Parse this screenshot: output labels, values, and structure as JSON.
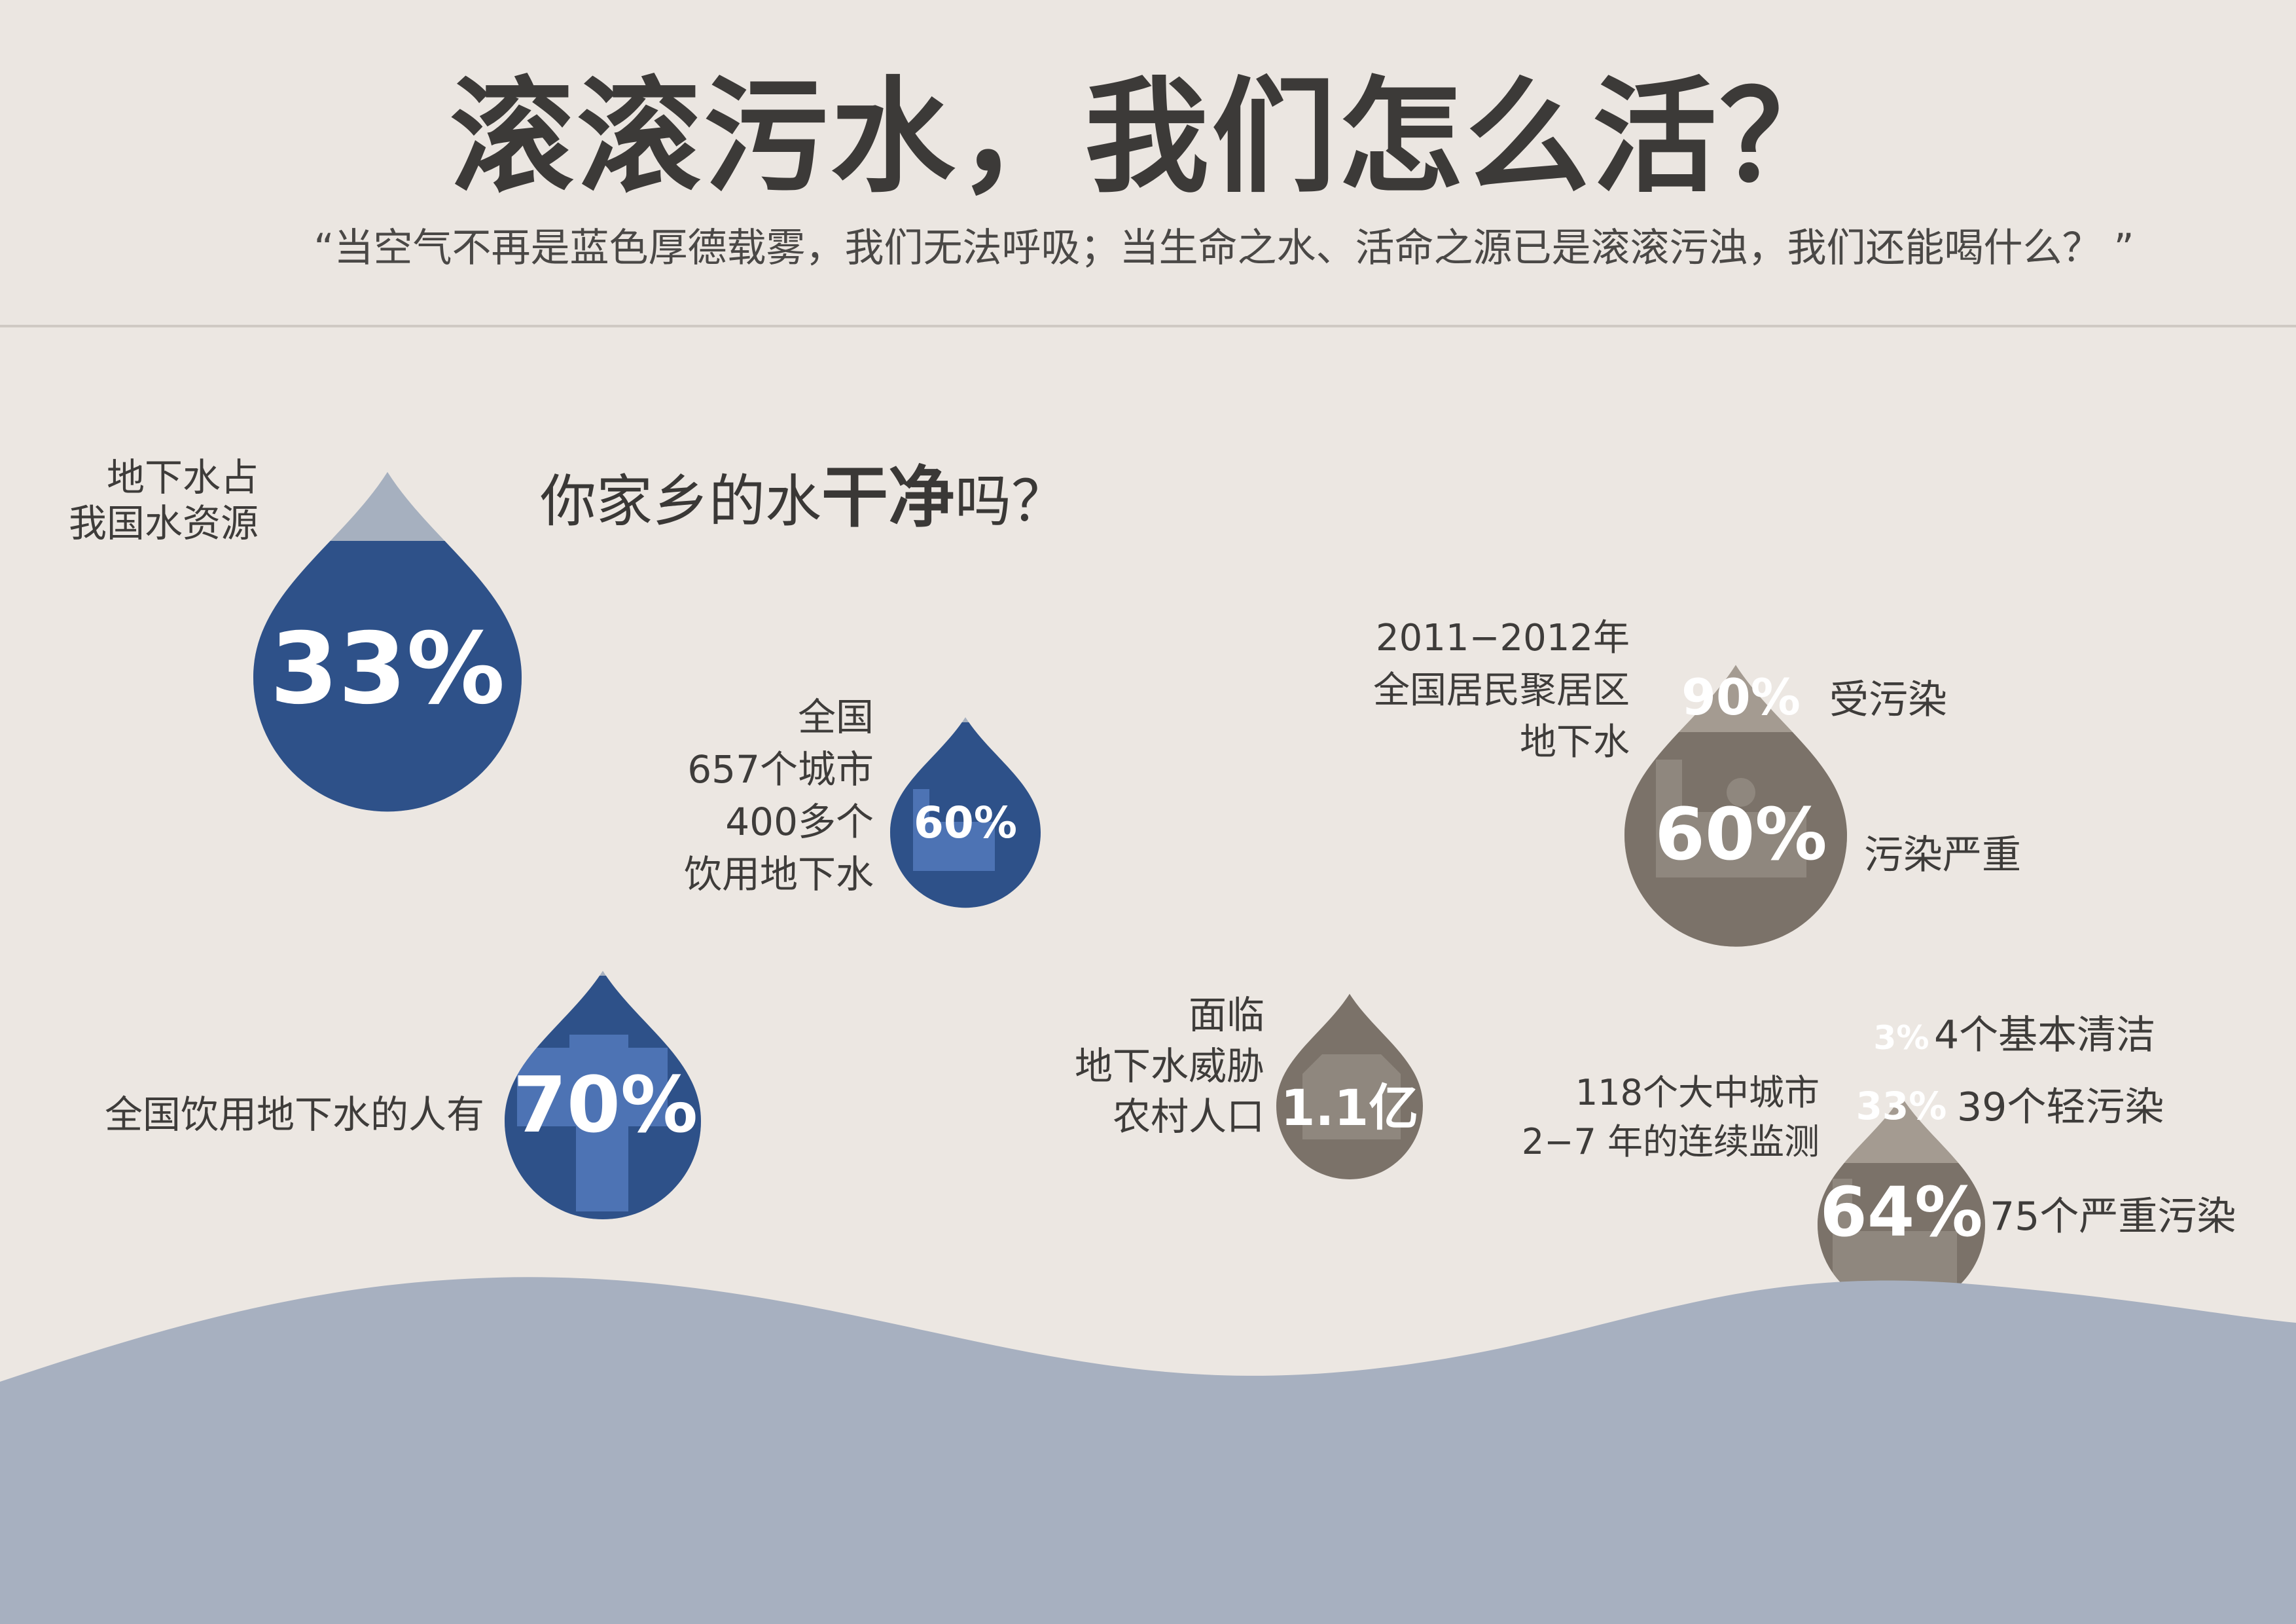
{
  "header": {
    "title": "滚滚污水，我们怎么活？",
    "quote": "“当空气不再是蓝色厚德载雾，我们无法呼吸；当生命之水、活命之源已是滚滚污浊，我们还能喝什么？ ”"
  },
  "subtitle": {
    "prefix": "你家乡的水",
    "emphasis": "干净",
    "suffix": "吗？"
  },
  "facts": {
    "groundwater_share": {
      "label_line1": "地下水占",
      "label_line2": "我国水资源",
      "value": "33%",
      "fraction": 0.33
    },
    "cities": {
      "line1": "全国",
      "line2": "657个城市",
      "line3": "400多个",
      "line4": "饮用地下水",
      "value": "60%",
      "fraction": 0.6
    },
    "population": {
      "label": "全国饮用地下水的人有",
      "value": "70%",
      "fraction": 0.7
    },
    "rural": {
      "line1": "面临",
      "line2": "地下水威胁",
      "line3": "农村人口",
      "value": "1.1亿"
    },
    "residential": {
      "line1": "2011−2012年",
      "line2": "全国居民聚居区",
      "line3": "地下水",
      "polluted_value": "90%",
      "polluted_label": "受污染",
      "severe_value": "60%",
      "severe_label": "污染严重"
    },
    "monitoring": {
      "line1": "118个大中城市",
      "line2": "2−7 年的连续监测",
      "clean_value": "3%",
      "clean_label": "4个基本清洁",
      "light_value": "33%",
      "light_label": "39个轻污染",
      "heavy_value": "64%",
      "heavy_label": "75个严重污染"
    }
  },
  "colors": {
    "background": "#ece7e2",
    "blue_dark": "#2e5189",
    "blue_light": "#a6b0bf",
    "grey_dark": "#7b7269",
    "grey_light": "#bab2a8",
    "wave": "#a7b0c0"
  }
}
